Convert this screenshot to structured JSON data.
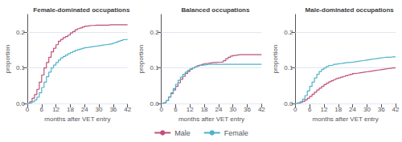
{
  "chart_data": [
    {
      "type": "line",
      "title": "Female-dominated occupations",
      "xlabel": "months after VET entry",
      "ylabel": "proportion",
      "x": [
        0,
        1,
        2,
        3,
        4,
        5,
        6,
        7,
        8,
        9,
        10,
        11,
        12,
        13,
        14,
        15,
        16,
        17,
        18,
        19,
        20,
        21,
        22,
        23,
        24,
        25,
        26,
        27,
        28,
        29,
        30,
        31,
        32,
        33,
        34,
        35,
        36,
        37,
        38,
        39,
        40,
        41,
        42
      ],
      "series": [
        {
          "name": "Male",
          "color": "#c0507a",
          "values": [
            0.0,
            0.005,
            0.015,
            0.025,
            0.04,
            0.06,
            0.08,
            0.1,
            0.115,
            0.13,
            0.145,
            0.155,
            0.165,
            0.175,
            0.18,
            0.185,
            0.188,
            0.192,
            0.198,
            0.202,
            0.207,
            0.21,
            0.212,
            0.215,
            0.217,
            0.218,
            0.219,
            0.219,
            0.22,
            0.22,
            0.22,
            0.22,
            0.22,
            0.22,
            0.221,
            0.221,
            0.221,
            0.221,
            0.221,
            0.221,
            0.221,
            0.221,
            0.221
          ]
        },
        {
          "name": "Female",
          "color": "#4db3c8",
          "values": [
            0.0,
            0.002,
            0.005,
            0.01,
            0.018,
            0.03,
            0.045,
            0.06,
            0.075,
            0.088,
            0.1,
            0.108,
            0.115,
            0.122,
            0.128,
            0.132,
            0.136,
            0.14,
            0.143,
            0.146,
            0.149,
            0.151,
            0.153,
            0.155,
            0.157,
            0.158,
            0.159,
            0.16,
            0.161,
            0.162,
            0.163,
            0.164,
            0.165,
            0.166,
            0.167,
            0.168,
            0.17,
            0.172,
            0.175,
            0.177,
            0.179,
            0.18,
            0.181
          ]
        }
      ],
      "line_style": "steps-post",
      "xlim": [
        0,
        42
      ],
      "xticks": [
        0,
        6,
        12,
        18,
        24,
        30,
        36,
        42
      ],
      "ylim": [
        0,
        0.25
      ],
      "yticks": [
        {
          "value": 0.0,
          "label": "0.0"
        },
        0.1,
        0.2
      ],
      "grid": true,
      "legend": "bottom"
    },
    {
      "type": "line",
      "title": "Balanced occupations",
      "xlabel": "months after VET entry",
      "ylabel": "proportion",
      "x": [
        0,
        1,
        2,
        3,
        4,
        5,
        6,
        7,
        8,
        9,
        10,
        11,
        12,
        13,
        14,
        15,
        16,
        17,
        18,
        19,
        20,
        21,
        22,
        23,
        24,
        25,
        26,
        27,
        28,
        29,
        30,
        31,
        32,
        33,
        34,
        35,
        36,
        37,
        38,
        39,
        40,
        41,
        42
      ],
      "series": [
        {
          "name": "Male",
          "color": "#c0507a",
          "values": [
            0.0,
            0.002,
            0.008,
            0.018,
            0.028,
            0.038,
            0.048,
            0.058,
            0.068,
            0.076,
            0.084,
            0.09,
            0.096,
            0.1,
            0.103,
            0.106,
            0.108,
            0.11,
            0.112,
            0.113,
            0.114,
            0.115,
            0.115,
            0.116,
            0.116,
            0.117,
            0.12,
            0.126,
            0.13,
            0.133,
            0.135,
            0.136,
            0.137,
            0.137,
            0.137,
            0.137,
            0.137,
            0.137,
            0.137,
            0.137,
            0.137,
            0.137,
            0.137
          ]
        },
        {
          "name": "Female",
          "color": "#4db3c8",
          "values": [
            0.0,
            0.002,
            0.008,
            0.018,
            0.03,
            0.042,
            0.054,
            0.065,
            0.074,
            0.082,
            0.088,
            0.093,
            0.097,
            0.1,
            0.103,
            0.105,
            0.107,
            0.108,
            0.109,
            0.11,
            0.11,
            0.11,
            0.11,
            0.11,
            0.11,
            0.11,
            0.11,
            0.11,
            0.11,
            0.11,
            0.11,
            0.11,
            0.11,
            0.11,
            0.11,
            0.11,
            0.11,
            0.11,
            0.11,
            0.11,
            0.11,
            0.11,
            0.11
          ]
        }
      ],
      "line_style": "steps-post",
      "xlim": [
        0,
        42
      ],
      "xticks": [
        0,
        6,
        12,
        18,
        24,
        30,
        36,
        42
      ],
      "ylim": [
        0,
        0.25
      ],
      "yticks": [
        {
          "value": 0.0,
          "label": "0.0"
        },
        0.1,
        0.2
      ],
      "grid": true,
      "legend": "bottom"
    },
    {
      "type": "line",
      "title": "Male-dominated occupations",
      "xlabel": "months after VET entry",
      "ylabel": "proportion",
      "x": [
        0,
        1,
        2,
        3,
        4,
        5,
        6,
        7,
        8,
        9,
        10,
        11,
        12,
        13,
        14,
        15,
        16,
        17,
        18,
        19,
        20,
        21,
        22,
        23,
        24,
        25,
        26,
        27,
        28,
        29,
        30,
        31,
        32,
        33,
        34,
        35,
        36,
        37,
        38,
        39,
        40,
        41,
        42
      ],
      "series": [
        {
          "name": "Male",
          "color": "#c0507a",
          "values": [
            0.0,
            0.001,
            0.003,
            0.006,
            0.01,
            0.015,
            0.02,
            0.026,
            0.032,
            0.038,
            0.043,
            0.048,
            0.053,
            0.057,
            0.061,
            0.064,
            0.067,
            0.07,
            0.072,
            0.074,
            0.076,
            0.078,
            0.08,
            0.082,
            0.084,
            0.085,
            0.086,
            0.087,
            0.088,
            0.089,
            0.09,
            0.091,
            0.092,
            0.093,
            0.094,
            0.095,
            0.096,
            0.097,
            0.098,
            0.099,
            0.1,
            0.1,
            0.1
          ]
        },
        {
          "name": "Female",
          "color": "#4db3c8",
          "values": [
            0.0,
            0.002,
            0.005,
            0.012,
            0.022,
            0.035,
            0.048,
            0.06,
            0.072,
            0.082,
            0.09,
            0.096,
            0.1,
            0.104,
            0.107,
            0.108,
            0.11,
            0.111,
            0.112,
            0.113,
            0.114,
            0.115,
            0.115,
            0.116,
            0.117,
            0.118,
            0.119,
            0.12,
            0.121,
            0.122,
            0.123,
            0.124,
            0.125,
            0.126,
            0.127,
            0.128,
            0.129,
            0.13,
            0.13,
            0.13,
            0.131,
            0.131,
            0.132
          ]
        }
      ],
      "line_style": "steps-post",
      "xlim": [
        0,
        42
      ],
      "xticks": [
        0,
        6,
        12,
        18,
        24,
        30,
        36,
        42
      ],
      "ylim": [
        0,
        0.25
      ],
      "yticks": [
        {
          "value": 0.0,
          "label": "0.0"
        },
        0.1,
        0.2
      ],
      "grid": true,
      "legend": "bottom"
    }
  ]
}
